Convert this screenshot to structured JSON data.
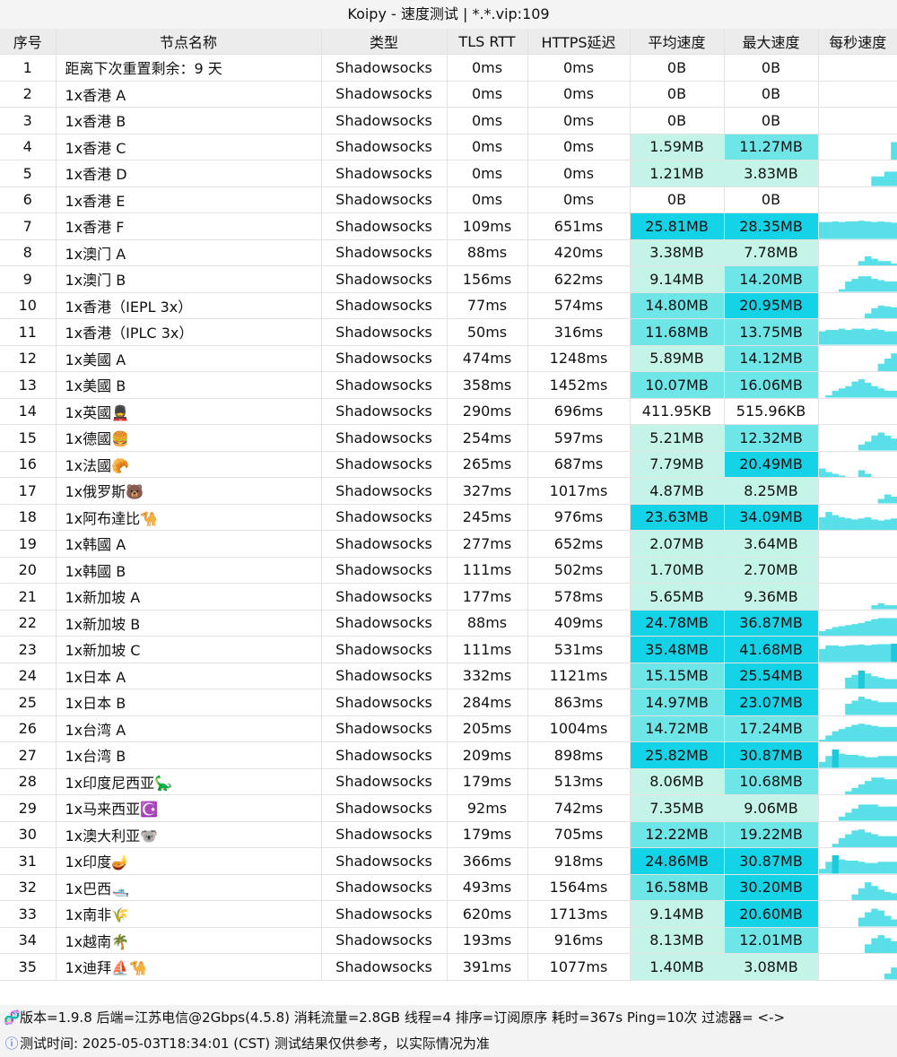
{
  "window": {
    "title": "Koipy - 速度测试 | *.*.vip:109"
  },
  "table": {
    "headers": [
      "序号",
      "节点名称",
      "类型",
      "TLS RTT",
      "HTTPS延迟",
      "平均速度",
      "最大速度",
      "每秒速度"
    ],
    "rows": [
      {
        "idx": "1",
        "name": "距离下次重置剩余：9 天",
        "type": "Shadowsocks",
        "tls": "0ms",
        "https": "0ms",
        "avg": "0B",
        "max": "0B",
        "avg_mb": 0,
        "max_mb": 0,
        "series": []
      },
      {
        "idx": "2",
        "name": "1x香港 A",
        "type": "Shadowsocks",
        "tls": "0ms",
        "https": "0ms",
        "avg": "0B",
        "max": "0B",
        "avg_mb": 0,
        "max_mb": 0,
        "series": []
      },
      {
        "idx": "3",
        "name": "1x香港 B",
        "type": "Shadowsocks",
        "tls": "0ms",
        "https": "0ms",
        "avg": "0B",
        "max": "0B",
        "avg_mb": 0,
        "max_mb": 0,
        "series": []
      },
      {
        "idx": "4",
        "name": "1x香港 C",
        "type": "Shadowsocks",
        "tls": "0ms",
        "https": "0ms",
        "avg": "1.59MB",
        "max": "11.27MB",
        "avg_mb": 1.59,
        "max_mb": 11.27,
        "series": [
          0,
          0,
          0,
          0,
          0,
          0,
          0,
          0,
          0,
          0,
          0,
          11
        ]
      },
      {
        "idx": "5",
        "name": "1x香港 D",
        "type": "Shadowsocks",
        "tls": "0ms",
        "https": "0ms",
        "avg": "1.21MB",
        "max": "3.83MB",
        "avg_mb": 1.21,
        "max_mb": 3.83,
        "series": [
          0,
          0,
          0,
          0,
          0,
          0,
          0,
          0,
          2,
          2,
          3,
          3
        ]
      },
      {
        "idx": "6",
        "name": "1x香港 E",
        "type": "Shadowsocks",
        "tls": "0ms",
        "https": "0ms",
        "avg": "0B",
        "max": "0B",
        "avg_mb": 0,
        "max_mb": 0,
        "series": [
          0,
          0,
          0,
          0,
          0,
          0,
          0,
          0,
          0,
          0,
          0,
          0
        ]
      },
      {
        "idx": "7",
        "name": "1x香港 F",
        "type": "Shadowsocks",
        "tls": "109ms",
        "https": "651ms",
        "avg": "25.81MB",
        "max": "28.35MB",
        "avg_mb": 25.81,
        "max_mb": 28.35,
        "series": [
          26,
          26,
          27,
          26,
          27,
          27,
          28,
          27,
          26,
          27,
          26,
          25
        ]
      },
      {
        "idx": "8",
        "name": "1x澳门 A",
        "type": "Shadowsocks",
        "tls": "88ms",
        "https": "420ms",
        "avg": "3.38MB",
        "max": "7.78MB",
        "avg_mb": 3.38,
        "max_mb": 7.78,
        "series": [
          0,
          0,
          0,
          0,
          0,
          0,
          2,
          4,
          3,
          2,
          2,
          1
        ]
      },
      {
        "idx": "9",
        "name": "1x澳门 B",
        "type": "Shadowsocks",
        "tls": "156ms",
        "https": "622ms",
        "avg": "9.14MB",
        "max": "14.20MB",
        "avg_mb": 9.14,
        "max_mb": 14.2,
        "series": [
          0,
          0,
          0,
          2,
          8,
          10,
          12,
          12,
          10,
          9,
          8,
          8
        ]
      },
      {
        "idx": "10",
        "name": "1x香港（IEPL 3x）",
        "type": "Shadowsocks",
        "tls": "77ms",
        "https": "574ms",
        "avg": "14.80MB",
        "max": "20.95MB",
        "avg_mb": 14.8,
        "max_mb": 20.95,
        "series": [
          0,
          0,
          0,
          0,
          0,
          0,
          0,
          6,
          12,
          15,
          14,
          13
        ]
      },
      {
        "idx": "11",
        "name": "1x香港（IPLC 3x）",
        "type": "Shadowsocks",
        "tls": "50ms",
        "https": "316ms",
        "avg": "11.68MB",
        "max": "13.75MB",
        "avg_mb": 11.68,
        "max_mb": 13.75,
        "series": [
          10,
          11,
          11,
          12,
          11,
          12,
          12,
          11,
          12,
          11,
          10,
          10
        ]
      },
      {
        "idx": "12",
        "name": "1x美國 A",
        "type": "Shadowsocks",
        "tls": "474ms",
        "https": "1248ms",
        "avg": "5.89MB",
        "max": "14.12MB",
        "avg_mb": 5.89,
        "max_mb": 14.12,
        "series": [
          0,
          0,
          0,
          0,
          0,
          0,
          0,
          0,
          0,
          6,
          10,
          14
        ]
      },
      {
        "idx": "13",
        "name": "1x美國 B",
        "type": "Shadowsocks",
        "tls": "358ms",
        "https": "1452ms",
        "avg": "10.07MB",
        "max": "16.06MB",
        "avg_mb": 10.07,
        "max_mb": 16.06,
        "series": [
          0,
          2,
          6,
          8,
          10,
          14,
          16,
          13,
          10,
          8,
          6,
          6
        ]
      },
      {
        "idx": "14",
        "name": "1x英國💂",
        "type": "Shadowsocks",
        "tls": "290ms",
        "https": "696ms",
        "avg": "411.95KB",
        "max": "515.96KB",
        "avg_mb": 0.41,
        "max_mb": 0.52,
        "series": []
      },
      {
        "idx": "15",
        "name": "1x德國🍔",
        "type": "Shadowsocks",
        "tls": "254ms",
        "https": "597ms",
        "avg": "5.21MB",
        "max": "12.32MB",
        "avg_mb": 5.21,
        "max_mb": 12.32,
        "series": [
          0,
          0,
          0,
          0,
          0,
          0,
          4,
          6,
          10,
          12,
          10,
          8
        ]
      },
      {
        "idx": "16",
        "name": "1x法國🥐",
        "type": "Shadowsocks",
        "tls": "265ms",
        "https": "687ms",
        "avg": "7.79MB",
        "max": "20.49MB",
        "avg_mb": 7.79,
        "max_mb": 20.49,
        "series": [
          10,
          6,
          4,
          2,
          0,
          0,
          8,
          4,
          0,
          0,
          0,
          0
        ]
      },
      {
        "idx": "17",
        "name": "1x俄罗斯🐻",
        "type": "Shadowsocks",
        "tls": "327ms",
        "https": "1017ms",
        "avg": "4.87MB",
        "max": "8.25MB",
        "avg_mb": 4.87,
        "max_mb": 8.25,
        "series": [
          0,
          0,
          0,
          0,
          0,
          0,
          0,
          0,
          0,
          2,
          4,
          3
        ]
      },
      {
        "idx": "18",
        "name": "1x阿布達比🐪",
        "type": "Shadowsocks",
        "tls": "245ms",
        "https": "976ms",
        "avg": "23.63MB",
        "max": "34.09MB",
        "avg_mb": 23.63,
        "max_mb": 34.09,
        "series": [
          24,
          34,
          28,
          24,
          22,
          20,
          22,
          24,
          20,
          18,
          20,
          22
        ]
      },
      {
        "idx": "19",
        "name": "1x韩國 A",
        "type": "Shadowsocks",
        "tls": "277ms",
        "https": "652ms",
        "avg": "2.07MB",
        "max": "3.64MB",
        "avg_mb": 2.07,
        "max_mb": 3.64,
        "series": [
          0,
          0,
          0,
          0,
          0,
          0,
          0,
          0,
          0,
          0,
          0,
          0
        ]
      },
      {
        "idx": "20",
        "name": "1x韩國 B",
        "type": "Shadowsocks",
        "tls": "111ms",
        "https": "502ms",
        "avg": "1.70MB",
        "max": "2.70MB",
        "avg_mb": 1.7,
        "max_mb": 2.7,
        "series": [
          0,
          0,
          0,
          0,
          0,
          0,
          0,
          0,
          0,
          0,
          0,
          0
        ]
      },
      {
        "idx": "21",
        "name": "1x新加坡 A",
        "type": "Shadowsocks",
        "tls": "177ms",
        "https": "578ms",
        "avg": "5.65MB",
        "max": "9.36MB",
        "avg_mb": 5.65,
        "max_mb": 9.36,
        "series": [
          0,
          0,
          0,
          0,
          0,
          0,
          0,
          0,
          2,
          3,
          2,
          2
        ]
      },
      {
        "idx": "22",
        "name": "1x新加坡 B",
        "type": "Shadowsocks",
        "tls": "88ms",
        "https": "409ms",
        "avg": "24.78MB",
        "max": "36.87MB",
        "avg_mb": 24.78,
        "max_mb": 36.87,
        "series": [
          10,
          14,
          18,
          20,
          22,
          24,
          26,
          30,
          34,
          36,
          36,
          36
        ]
      },
      {
        "idx": "23",
        "name": "1x新加坡 C",
        "type": "Shadowsocks",
        "tls": "111ms",
        "https": "531ms",
        "avg": "35.48MB",
        "max": "41.68MB",
        "avg_mb": 35.48,
        "max_mb": 41.68,
        "series": [
          30,
          38,
          38,
          36,
          38,
          39,
          40,
          38,
          40,
          41,
          41,
          42
        ]
      },
      {
        "idx": "24",
        "name": "1x日本 A",
        "type": "Shadowsocks",
        "tls": "332ms",
        "https": "1121ms",
        "avg": "15.15MB",
        "max": "25.54MB",
        "avg_mb": 15.15,
        "max_mb": 25.54,
        "series": [
          0,
          0,
          0,
          0,
          16,
          20,
          26,
          22,
          18,
          16,
          14,
          14
        ]
      },
      {
        "idx": "25",
        "name": "1x日本 B",
        "type": "Shadowsocks",
        "tls": "284ms",
        "https": "863ms",
        "avg": "14.97MB",
        "max": "23.07MB",
        "avg_mb": 14.97,
        "max_mb": 23.07,
        "series": [
          0,
          0,
          0,
          0,
          14,
          18,
          23,
          20,
          18,
          16,
          16,
          16
        ]
      },
      {
        "idx": "26",
        "name": "1x台湾 A",
        "type": "Shadowsocks",
        "tls": "205ms",
        "https": "1004ms",
        "avg": "14.72MB",
        "max": "17.24MB",
        "avg_mb": 14.72,
        "max_mb": 17.24,
        "series": [
          2,
          6,
          10,
          12,
          14,
          16,
          17,
          16,
          15,
          14,
          14,
          14
        ]
      },
      {
        "idx": "27",
        "name": "1x台湾 B",
        "type": "Shadowsocks",
        "tls": "209ms",
        "https": "898ms",
        "avg": "25.82MB",
        "max": "30.87MB",
        "avg_mb": 25.82,
        "max_mb": 30.87,
        "series": [
          10,
          20,
          31,
          24,
          22,
          22,
          20,
          18,
          18,
          20,
          20,
          20
        ]
      },
      {
        "idx": "28",
        "name": "1x印度尼西亚🦕",
        "type": "Shadowsocks",
        "tls": "179ms",
        "https": "513ms",
        "avg": "8.06MB",
        "max": "10.68MB",
        "avg_mb": 8.06,
        "max_mb": 10.68,
        "series": [
          0,
          0,
          0,
          0,
          2,
          4,
          6,
          8,
          10,
          10,
          9,
          9
        ]
      },
      {
        "idx": "29",
        "name": "1x马来西亚☪️",
        "type": "Shadowsocks",
        "tls": "92ms",
        "https": "742ms",
        "avg": "7.35MB",
        "max": "9.06MB",
        "avg_mb": 7.35,
        "max_mb": 9.06,
        "series": [
          0,
          0,
          0,
          2,
          4,
          6,
          8,
          8,
          8,
          7,
          7,
          7
        ]
      },
      {
        "idx": "30",
        "name": "1x澳大利亚🐨",
        "type": "Shadowsocks",
        "tls": "179ms",
        "https": "705ms",
        "avg": "12.22MB",
        "max": "19.22MB",
        "avg_mb": 12.22,
        "max_mb": 19.22,
        "series": [
          0,
          0,
          4,
          10,
          14,
          18,
          19,
          16,
          14,
          12,
          12,
          12
        ]
      },
      {
        "idx": "31",
        "name": "1x印度🪔",
        "type": "Shadowsocks",
        "tls": "366ms",
        "https": "918ms",
        "avg": "24.86MB",
        "max": "30.87MB",
        "avg_mb": 24.86,
        "max_mb": 30.87,
        "series": [
          8,
          20,
          31,
          24,
          22,
          22,
          20,
          18,
          18,
          20,
          20,
          20
        ]
      },
      {
        "idx": "32",
        "name": "1x巴西🛥️",
        "type": "Shadowsocks",
        "tls": "493ms",
        "https": "1564ms",
        "avg": "16.58MB",
        "max": "30.20MB",
        "avg_mb": 16.58,
        "max_mb": 30.2,
        "series": [
          0,
          0,
          0,
          0,
          0,
          10,
          20,
          30,
          24,
          18,
          14,
          12
        ]
      },
      {
        "idx": "33",
        "name": "1x南非🌾",
        "type": "Shadowsocks",
        "tls": "620ms",
        "https": "1713ms",
        "avg": "9.14MB",
        "max": "20.60MB",
        "avg_mb": 9.14,
        "max_mb": 20.6,
        "series": [
          0,
          0,
          0,
          0,
          0,
          0,
          10,
          16,
          20,
          18,
          12,
          8
        ]
      },
      {
        "idx": "34",
        "name": "1x越南🌴",
        "type": "Shadowsocks",
        "tls": "193ms",
        "https": "916ms",
        "avg": "8.13MB",
        "max": "12.01MB",
        "avg_mb": 8.13,
        "max_mb": 12.01,
        "series": [
          0,
          0,
          0,
          0,
          0,
          0,
          0,
          6,
          10,
          12,
          10,
          8
        ]
      },
      {
        "idx": "35",
        "name": "1x迪拜⛵🐪",
        "type": "Shadowsocks",
        "tls": "391ms",
        "https": "1077ms",
        "avg": "1.40MB",
        "max": "3.08MB",
        "avg_mb": 1.4,
        "max_mb": 3.08,
        "series": [
          0,
          0,
          0,
          0,
          0,
          0,
          0,
          0,
          0,
          0,
          1,
          2
        ]
      }
    ]
  },
  "footer": {
    "line1_icon": "dna-icon",
    "line1": "版本=1.9.8  后端=江苏电信@2Gbps(4.5.8) 消耗流量=2.8GB  线程=4  排序=订阅原序  耗时=367s  Ping=10次  过滤器= <->",
    "line2_icon": "info-icon",
    "line2": "测试时间: 2025-05-03T18:34:01 (CST)  测试结果仅供参考，以实际情况为准"
  },
  "colors": {
    "speed_high": "#14d3e6",
    "speed_mid": "#6ee6e8",
    "speed_low": "#c4f3e7",
    "spark_bar": "#58dfe8",
    "spark_bar_peak": "#1fc8dc"
  }
}
